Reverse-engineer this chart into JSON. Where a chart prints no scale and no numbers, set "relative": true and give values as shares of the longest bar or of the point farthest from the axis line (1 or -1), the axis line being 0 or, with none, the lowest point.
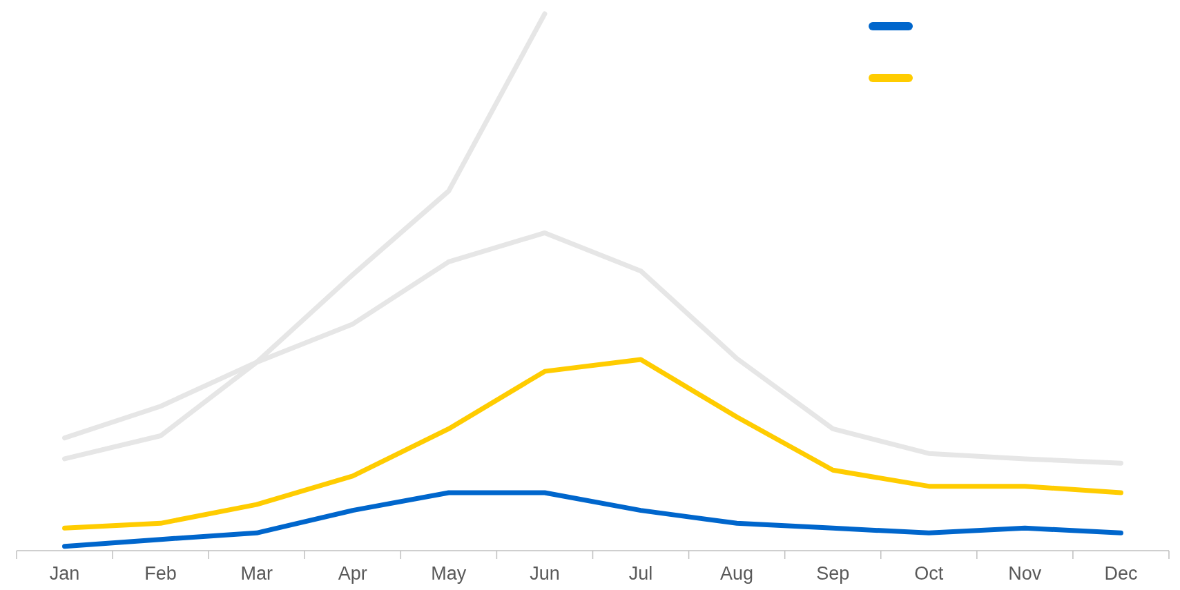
{
  "chart_data": {
    "type": "line",
    "relative": true,
    "line_style": "solid",
    "marker": "none",
    "categories": [
      "Jan",
      "Feb",
      "Mar",
      "Apr",
      "May",
      "Jun",
      "Jul",
      "Aug",
      "Sep",
      "Oct",
      "Nov",
      "Dec"
    ],
    "series": [
      {
        "color": "#0066cc",
        "values": [
          0.008,
          0.021,
          0.033,
          0.075,
          0.108,
          0.108,
          0.075,
          0.051,
          0.042,
          0.033,
          0.042,
          0.033
        ]
      },
      {
        "color": "#ffcc00",
        "values": [
          0.042,
          0.051,
          0.086,
          0.139,
          0.227,
          0.334,
          0.356,
          0.249,
          0.15,
          0.12,
          0.12,
          0.108
        ]
      },
      {
        "color": "#e6e6e6",
        "values": [
          0.171,
          0.214,
          0.351,
          0.514,
          0.67,
          1,
          null,
          null,
          null,
          null,
          null,
          null
        ]
      },
      {
        "color": "#e6e6e6",
        "values": [
          0.21,
          0.269,
          0.351,
          0.422,
          0.538,
          0.592,
          0.521,
          0.358,
          0.227,
          0.181,
          0.171,
          0.163
        ]
      }
    ]
  }
}
